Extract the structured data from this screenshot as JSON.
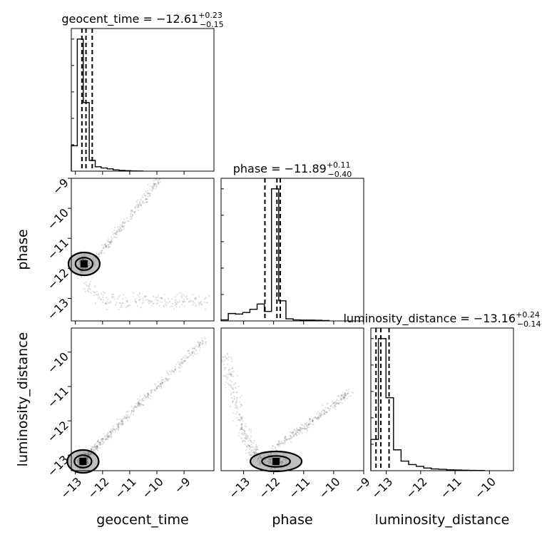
{
  "chart_data": {
    "type": "corner",
    "parameters": [
      "geocent_time",
      "phase",
      "luminosity_distance"
    ],
    "axis_labels": {
      "geocent_time": "geocent_time",
      "phase": "phase",
      "luminosity_distance": "luminosity_distance"
    },
    "ranges": {
      "geocent_time": [
        -13.15,
        -7.9
      ],
      "phase": [
        -13.75,
        -9.0
      ],
      "luminosity_distance": [
        -13.45,
        -9.3
      ]
    },
    "ticks": {
      "geocent_time": [
        -13,
        -12,
        -11,
        -10,
        -9
      ],
      "phase": [
        -13,
        -12,
        -11,
        -10,
        -9
      ],
      "luminosity_distance": [
        -13,
        -12,
        -11,
        -10
      ]
    },
    "tick_labels": {
      "geocent_time": [
        "−13",
        "−12",
        "−11",
        "−10",
        "−9"
      ],
      "phase": [
        "−13",
        "−12",
        "−11",
        "−10",
        "−9"
      ],
      "luminosity_distance": [
        "−13",
        "−12",
        "−11",
        "−10"
      ]
    },
    "titles": {
      "geocent_time": {
        "lhs": "geocent_time = −12.61",
        "plus": "+0.23",
        "minus": "−0.15"
      },
      "phase": {
        "lhs": "phase = −11.89",
        "plus": "+0.11",
        "minus": "−0.40"
      },
      "luminosity_distance": {
        "lhs": "luminosity_distance = −13.16",
        "plus": "+0.24",
        "minus": "−0.14"
      }
    },
    "quantiles": {
      "geocent_time": [
        -12.76,
        -12.61,
        -12.38
      ],
      "phase": [
        -12.29,
        -11.89,
        -11.78
      ],
      "luminosity_distance": [
        -13.3,
        -13.16,
        -12.92
      ]
    },
    "histograms": {
      "geocent_time": {
        "edges": [
          -13.15,
          -12.93,
          -12.71,
          -12.49,
          -12.27,
          -12.05,
          -11.83,
          -11.61,
          -11.39,
          -11.17,
          -10.95,
          -10.73,
          -10.51
        ],
        "counts": [
          200,
          1040,
          540,
          85,
          35,
          25,
          18,
          10,
          6,
          4,
          2,
          1
        ]
      },
      "phase": {
        "edges": [
          -13.75,
          -13.51,
          -13.27,
          -13.03,
          -12.79,
          -12.55,
          -12.31,
          -12.07,
          -11.83,
          -11.59,
          -11.35,
          -11.11,
          -10.87,
          -10.63,
          -10.39,
          -10.15
        ],
        "counts": [
          10,
          70,
          65,
          80,
          110,
          160,
          90,
          1250,
          190,
          20,
          10,
          8,
          8,
          6,
          4
        ]
      },
      "luminosity_distance": {
        "edges": [
          -13.45,
          -13.23,
          -13.01,
          -12.79,
          -12.57,
          -12.35,
          -12.13,
          -11.91,
          -11.69,
          -11.47,
          -11.25,
          -11.03,
          -10.81,
          -10.59,
          -10.37,
          -10.15
        ],
        "counts": [
          180,
          760,
          420,
          120,
          55,
          35,
          25,
          15,
          10,
          8,
          5,
          4,
          3,
          2,
          1
        ]
      }
    },
    "pairs": [
      {
        "x": "geocent_time",
        "y": "phase",
        "peak": [
          -12.68,
          -11.85
        ]
      },
      {
        "x": "geocent_time",
        "y": "luminosity_distance",
        "peak": [
          -12.72,
          -13.18
        ]
      },
      {
        "x": "phase",
        "y": "luminosity_distance",
        "peak": [
          -11.92,
          -13.18
        ]
      }
    ],
    "grid": true,
    "legend": "none"
  }
}
